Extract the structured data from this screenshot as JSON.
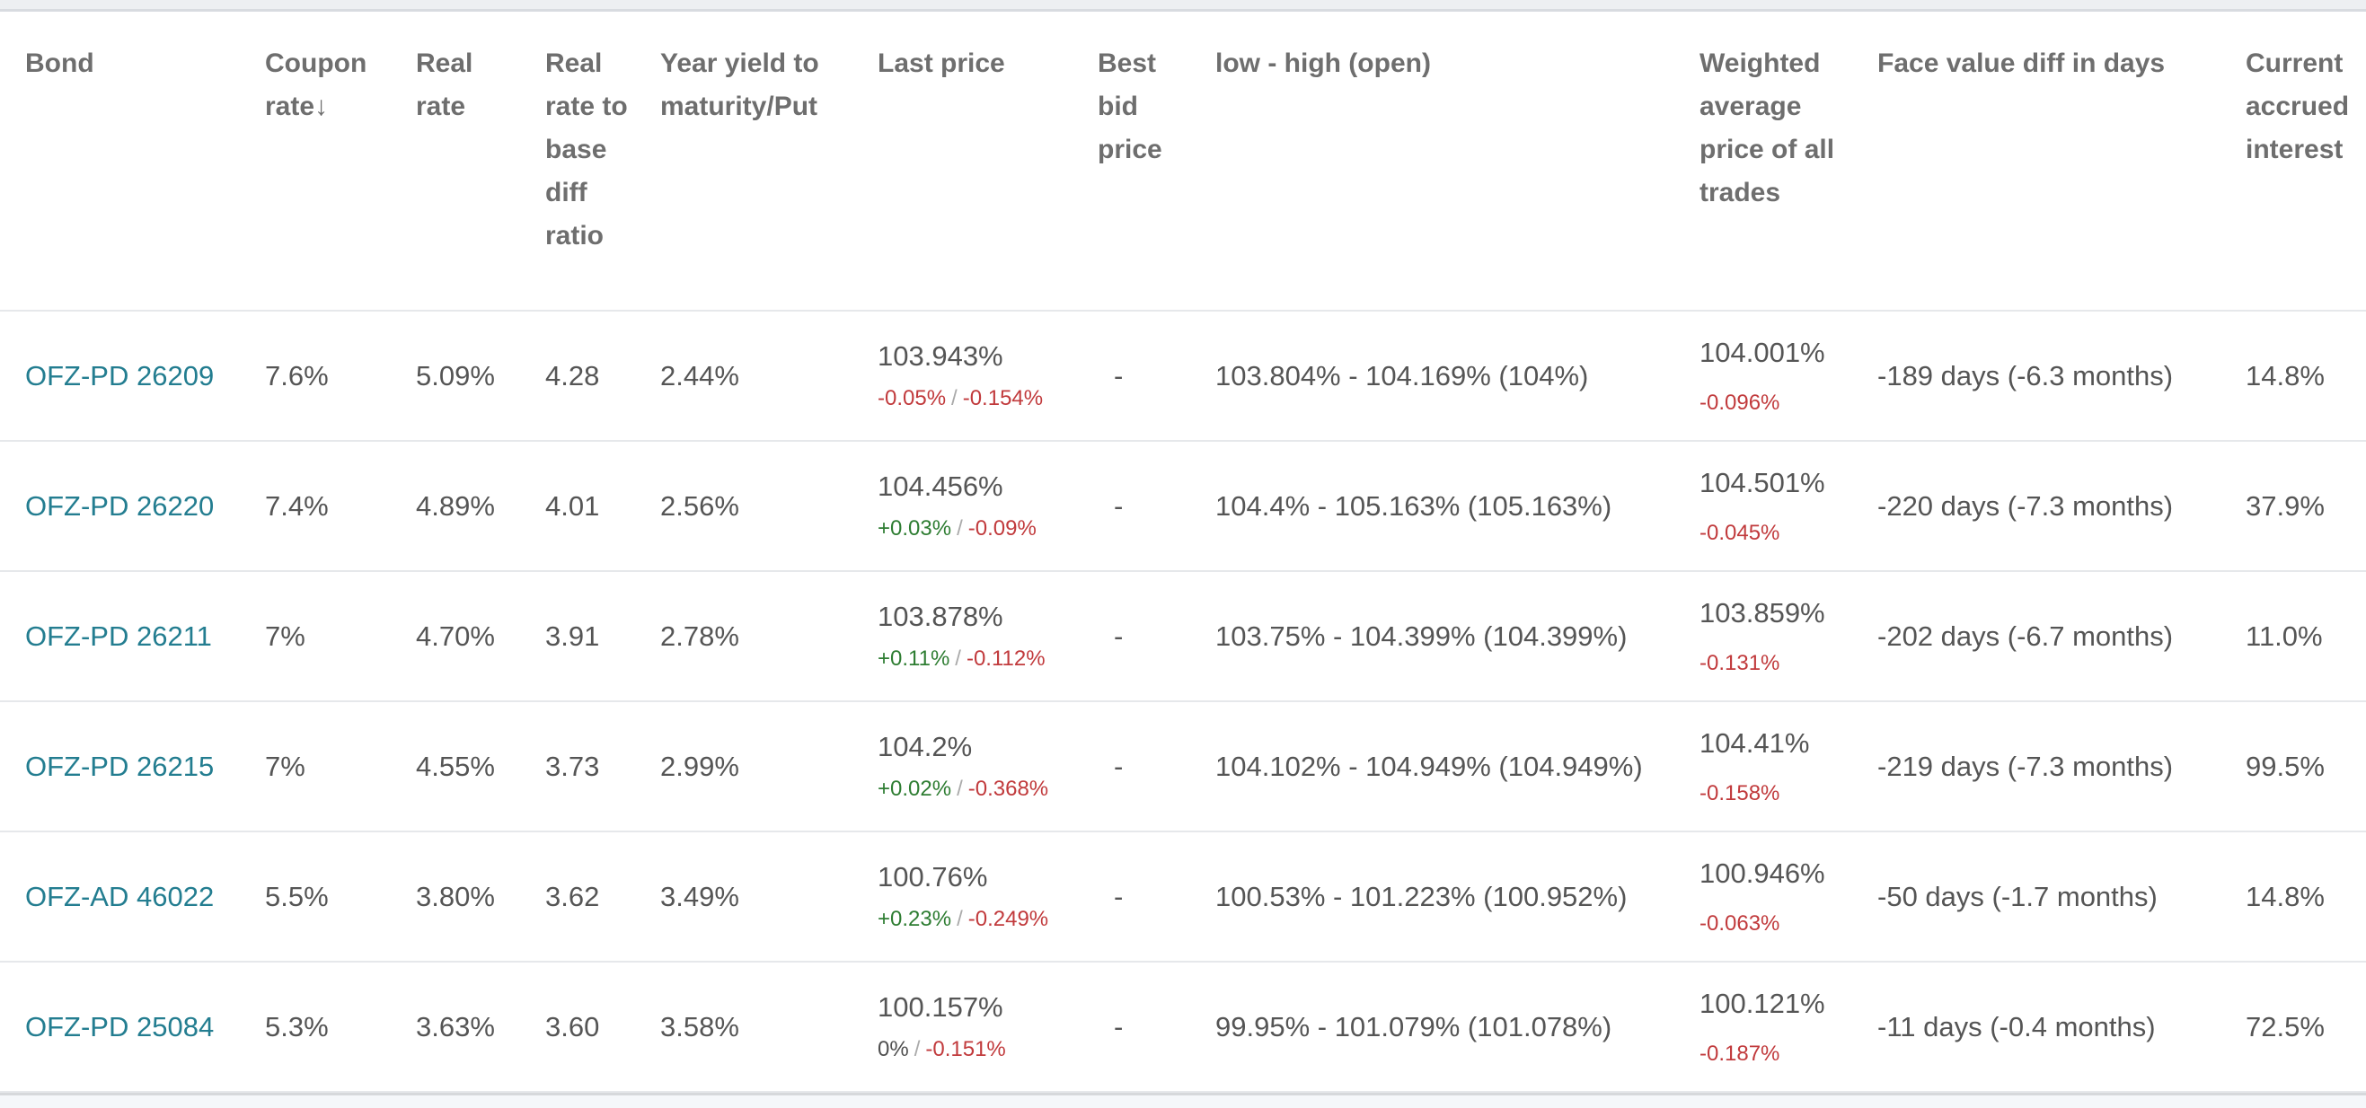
{
  "colors": {
    "link": "#237d90",
    "text": "#555555",
    "header_text": "#6e6e6e",
    "positive": "#2e7d32",
    "negative": "#c13a3c",
    "neutral_change": "#4f4f4f",
    "separator": "#aaaaaa"
  },
  "sort": {
    "arrow": "↓",
    "sorted_column": "Coupon rate",
    "direction": "descending"
  },
  "strings": {
    "change_separator": "/"
  },
  "columns": [
    {
      "label": "Bond"
    },
    {
      "label": "Coupon rate"
    },
    {
      "label": "Real rate"
    },
    {
      "label": "Real rate to base diff ratio"
    },
    {
      "label": "Year yield to maturity/Put"
    },
    {
      "label": "Last price"
    },
    {
      "label": "Best bid price"
    },
    {
      "label": "low - high (open)"
    },
    {
      "label": "Weighted average price of all trades"
    },
    {
      "label": "Face value diff in days"
    },
    {
      "label": "Current accrued interest"
    }
  ],
  "rows": [
    {
      "bond": "OFZ-PD 26209",
      "coupon_rate": "7.6%",
      "real_rate": "5.09%",
      "real_rate_to_base_diff_ratio": "4.28",
      "year_yield": "2.44%",
      "last_price": {
        "value": "103.943%",
        "change_1": "-0.05%",
        "change_1_color": "#c13a3c",
        "change_2": "-0.154%"
      },
      "best_bid": "-",
      "low_high": "103.804% - 104.169% (104%)",
      "weighted_avg": {
        "value": "104.001%",
        "change": "-0.096%"
      },
      "face_value_diff": "-189 days (-6.3 months)",
      "accrued_interest": "14.8%"
    },
    {
      "bond": "OFZ-PD 26220",
      "coupon_rate": "7.4%",
      "real_rate": "4.89%",
      "real_rate_to_base_diff_ratio": "4.01",
      "year_yield": "2.56%",
      "last_price": {
        "value": "104.456%",
        "change_1": "+0.03%",
        "change_1_color": "#2e7d32",
        "change_2": "-0.09%"
      },
      "best_bid": "-",
      "low_high": "104.4% - 105.163% (105.163%)",
      "weighted_avg": {
        "value": "104.501%",
        "change": "-0.045%"
      },
      "face_value_diff": "-220 days (-7.3 months)",
      "accrued_interest": "37.9%"
    },
    {
      "bond": "OFZ-PD 26211",
      "coupon_rate": "7%",
      "real_rate": "4.70%",
      "real_rate_to_base_diff_ratio": "3.91",
      "year_yield": "2.78%",
      "last_price": {
        "value": "103.878%",
        "change_1": "+0.11%",
        "change_1_color": "#2e7d32",
        "change_2": "-0.112%"
      },
      "best_bid": "-",
      "low_high": "103.75% - 104.399% (104.399%)",
      "weighted_avg": {
        "value": "103.859%",
        "change": "-0.131%"
      },
      "face_value_diff": "-202 days (-6.7 months)",
      "accrued_interest": "11.0%"
    },
    {
      "bond": "OFZ-PD 26215",
      "coupon_rate": "7%",
      "real_rate": "4.55%",
      "real_rate_to_base_diff_ratio": "3.73",
      "year_yield": "2.99%",
      "last_price": {
        "value": "104.2%",
        "change_1": "+0.02%",
        "change_1_color": "#2e7d32",
        "change_2": "-0.368%"
      },
      "best_bid": "-",
      "low_high": "104.102% - 104.949% (104.949%)",
      "weighted_avg": {
        "value": "104.41%",
        "change": "-0.158%"
      },
      "face_value_diff": "-219 days (-7.3 months)",
      "accrued_interest": "99.5%"
    },
    {
      "bond": "OFZ-AD 46022",
      "coupon_rate": "5.5%",
      "real_rate": "3.80%",
      "real_rate_to_base_diff_ratio": "3.62",
      "year_yield": "3.49%",
      "last_price": {
        "value": "100.76%",
        "change_1": "+0.23%",
        "change_1_color": "#2e7d32",
        "change_2": "-0.249%"
      },
      "best_bid": "-",
      "low_high": "100.53% - 101.223% (100.952%)",
      "weighted_avg": {
        "value": "100.946%",
        "change": "-0.063%"
      },
      "face_value_diff": "-50 days (-1.7 months)",
      "accrued_interest": "14.8%"
    },
    {
      "bond": "OFZ-PD 25084",
      "coupon_rate": "5.3%",
      "real_rate": "3.63%",
      "real_rate_to_base_diff_ratio": "3.60",
      "year_yield": "3.58%",
      "last_price": {
        "value": "100.157%",
        "change_1": "0%",
        "change_1_color": "#4f4f4f",
        "change_2": "-0.151%"
      },
      "best_bid": "-",
      "low_high": "99.95% - 101.079% (101.078%)",
      "weighted_avg": {
        "value": "100.121%",
        "change": "-0.187%"
      },
      "face_value_diff": "-11 days (-0.4 months)",
      "accrued_interest": "72.5%"
    }
  ]
}
